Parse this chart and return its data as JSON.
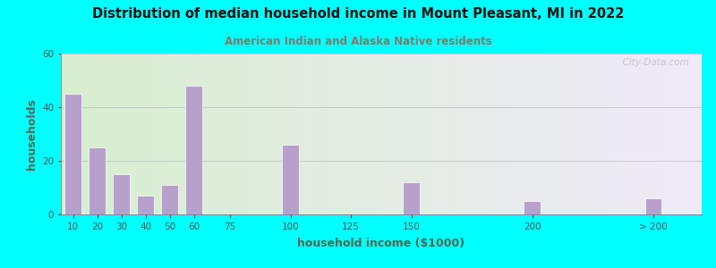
{
  "title": "Distribution of median household income in Mount Pleasant, MI in 2022",
  "subtitle": "American Indian and Alaska Native residents",
  "xlabel": "household income ($1000)",
  "ylabel": "households",
  "background_outer": "#00FFFF",
  "background_inner_left": "#d8efd0",
  "background_inner_right": "#f0eaf8",
  "bar_color": "#b8a0cc",
  "bar_edgecolor": "#ffffff",
  "title_color": "#111111",
  "subtitle_color": "#887766",
  "axis_label_color": "#556655",
  "tick_label_color": "#555555",
  "categories": [
    "10",
    "20",
    "30",
    "40",
    "50",
    "60",
    "75",
    "100",
    "125",
    "150",
    "200",
    "> 200"
  ],
  "values": [
    45,
    25,
    15,
    7,
    11,
    48,
    0,
    26,
    0,
    12,
    5,
    6
  ],
  "ylim": [
    0,
    60
  ],
  "yticks": [
    0,
    20,
    40,
    60
  ],
  "watermark": "  City-Data.com"
}
